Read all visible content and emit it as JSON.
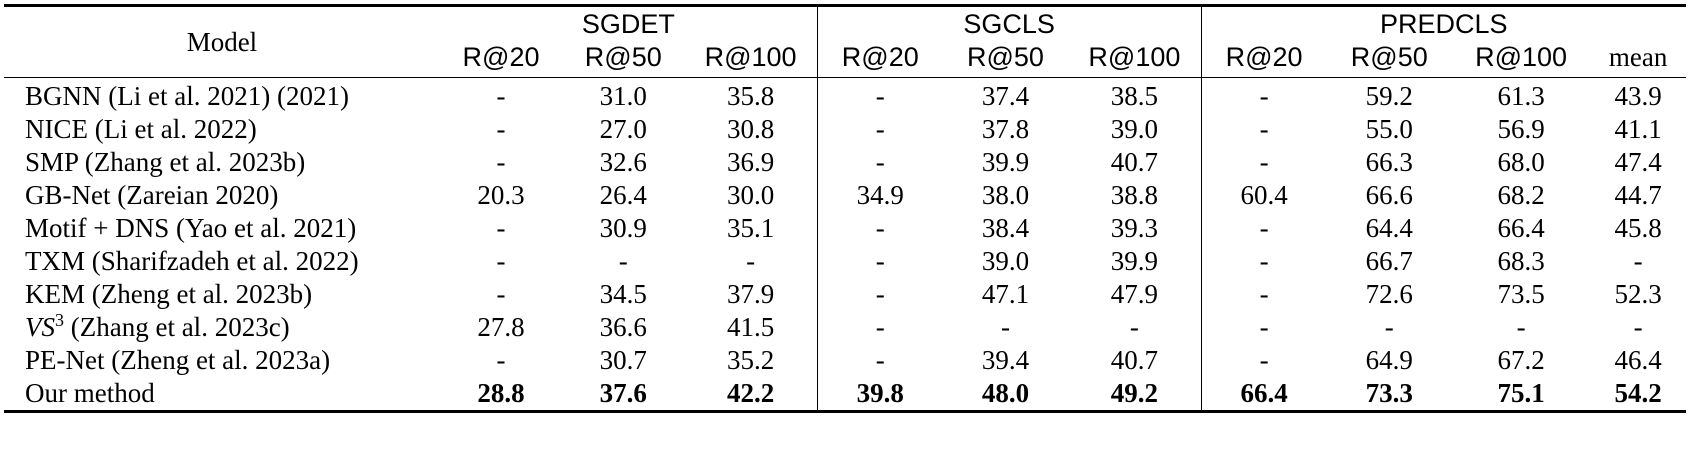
{
  "header": {
    "model_label": "Model",
    "groups": [
      "SGDET",
      "SGCLS",
      "PREDCLS"
    ],
    "subcols": [
      "R@20",
      "R@50",
      "R@100",
      "R@20",
      "R@50",
      "R@100",
      "R@20",
      "R@50",
      "R@100",
      "mean"
    ]
  },
  "rows": [
    {
      "model": "BGNN (Li et al. 2021) (2021)",
      "values": [
        "-",
        "31.0",
        "35.8",
        "-",
        "37.4",
        "38.5",
        "-",
        "59.2",
        "61.3",
        "43.9"
      ]
    },
    {
      "model": "NICE (Li et al. 2022)",
      "values": [
        "-",
        "27.0",
        "30.8",
        "-",
        "37.8",
        "39.0",
        "-",
        "55.0",
        "56.9",
        "41.1"
      ]
    },
    {
      "model": "SMP (Zhang et al. 2023b)",
      "values": [
        "-",
        "32.6",
        "36.9",
        "-",
        "39.9",
        "40.7",
        "-",
        "66.3",
        "68.0",
        "47.4"
      ]
    },
    {
      "model": "GB-Net (Zareian 2020)",
      "values": [
        "20.3",
        "26.4",
        "30.0",
        "34.9",
        "38.0",
        "38.8",
        "60.4",
        "66.6",
        "68.2",
        "44.7"
      ]
    },
    {
      "model": "Motif + DNS (Yao et al. 2021)",
      "values": [
        "-",
        "30.9",
        "35.1",
        "-",
        "38.4",
        "39.3",
        "-",
        "64.4",
        "66.4",
        "45.8"
      ]
    },
    {
      "model": "TXM (Sharifzadeh et al. 2022)",
      "values": [
        "-",
        "-",
        "-",
        "-",
        "39.0",
        "39.9",
        "-",
        "66.7",
        "68.3",
        "-"
      ]
    },
    {
      "model": "KEM (Zheng et al. 2023b)",
      "values": [
        "-",
        "34.5",
        "37.9",
        "-",
        "47.1",
        "47.9",
        "-",
        "72.6",
        "73.5",
        "52.3"
      ]
    },
    {
      "model_prefix": "VS",
      "model_sup": "3",
      "model": "(Zhang et al. 2023c)",
      "values": [
        "27.8",
        "36.6",
        "41.5",
        "-",
        "-",
        "-",
        "-",
        "-",
        "-",
        "-"
      ]
    },
    {
      "model": "PE-Net (Zheng et al. 2023a)",
      "values": [
        "-",
        "30.7",
        "35.2",
        "-",
        "39.4",
        "40.7",
        "-",
        "64.9",
        "67.2",
        "46.4"
      ]
    },
    {
      "model": "Our method",
      "values": [
        "28.8",
        "37.6",
        "42.2",
        "39.8",
        "48.0",
        "49.2",
        "66.4",
        "73.3",
        "75.1",
        "54.2"
      ],
      "bold": true
    }
  ]
}
